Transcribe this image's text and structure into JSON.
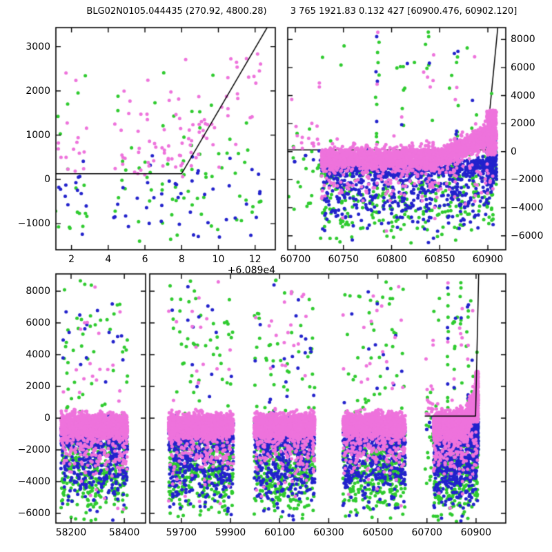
{
  "titles": {
    "left": "BLG02N0105.044435 (270.92, 4800.28)",
    "right": "3 765 1921.83 0.132 427 [60900.476, 60902.120]"
  },
  "colors": {
    "violet": "#EE73DC",
    "green": "#2FCB2F",
    "blue": "#2222CC",
    "line": "#000000",
    "frame": "#000000",
    "background": "#ffffff",
    "text": "#000000"
  },
  "chart_data": {
    "type": "scatter",
    "title": "BLG02N0105.044435 (270.92, 4800.28)    3 765 1921.83 0.132 427 [60900.476, 60902.120]",
    "xlabel": "",
    "ylabel": "",
    "grid": false,
    "legend": "none",
    "seed": 12,
    "marker_radius": 2.5,
    "series": [
      {
        "name": "violet-photometry",
        "color": "#EE73DC"
      },
      {
        "name": "green-photometry",
        "color": "#2FCB2F"
      },
      {
        "name": "blue-photometry",
        "color": "#2222CC"
      }
    ],
    "model_line": [
      [
        60691,
        130
      ],
      [
        60898.0,
        130
      ],
      [
        60911.5,
        9700
      ]
    ],
    "panels": [
      {
        "id": "top-left-zoom",
        "px": {
          "l": 81,
          "r": 399,
          "t": 40,
          "b": 362
        },
        "xlim": [
          60891.15,
          60903.1
        ],
        "ylim": [
          -1590,
          3430
        ],
        "xticks": {
          "values": [
            60892,
            60894,
            60896,
            60898,
            60900,
            60902
          ],
          "labels": [
            "2",
            "4",
            "6",
            "8",
            "10",
            "12"
          ]
        },
        "offset_text": "+6.089e4",
        "yticks": {
          "values": [
            -1000,
            0,
            1000,
            2000,
            3000
          ],
          "labels": [
            "−1000",
            "0",
            "1000",
            "2000",
            "3000"
          ],
          "labels_side": "left"
        },
        "dataset": "zoom",
        "model": true,
        "model_z": "over"
      },
      {
        "id": "top-right-zoom",
        "px": {
          "l": 417,
          "r": 733,
          "t": 40,
          "b": 362
        },
        "xlim": [
          60692.1,
          60918.6
        ],
        "ylim": [
          -7000,
          8850
        ],
        "xticks": {
          "values": [
            60700,
            60750,
            60800,
            60850,
            60900
          ],
          "labels": [
            "60700",
            "60750",
            "60800",
            "60850",
            "60900"
          ]
        },
        "yticks": {
          "values": [
            -6000,
            -4000,
            -2000,
            0,
            2000,
            4000,
            6000,
            8000
          ],
          "labels": [
            "−6000",
            "−4000",
            "−2000",
            "0",
            "2000",
            "4000",
            "6000",
            "8000"
          ],
          "labels_side": "right"
        },
        "dataset": "main",
        "model": true,
        "model_z": "under"
      },
      {
        "id": "bottom-left-segment",
        "px": {
          "l": 81,
          "r": 211,
          "t": 397,
          "b": 758
        },
        "xlim": [
          58143,
          58480
        ],
        "ylim": [
          -6610,
          9090
        ],
        "xticks": {
          "values": [
            58200,
            58400
          ],
          "labels": [
            "58200",
            "58400"
          ]
        },
        "yticks": {
          "values": [
            -6000,
            -4000,
            -2000,
            0,
            2000,
            4000,
            6000,
            8000
          ],
          "labels": [
            "−6000",
            "−4000",
            "−2000",
            "0",
            "2000",
            "4000",
            "6000",
            "8000"
          ],
          "labels_side": "left"
        },
        "dataset": "main",
        "model": true,
        "model_z": "over"
      },
      {
        "id": "bottom-right-segment",
        "px": {
          "l": 217,
          "r": 733,
          "t": 397,
          "b": 758
        },
        "xlim": [
          59571,
          61021
        ],
        "ylim": [
          -6610,
          9090
        ],
        "xticks": {
          "values": [
            59700,
            59900,
            60100,
            60300,
            60500,
            60700,
            60900
          ],
          "labels": [
            "59700",
            "59900",
            "60100",
            "60300",
            "60500",
            "60700",
            "60900"
          ]
        },
        "yticks": {
          "values": [
            -6000,
            -4000,
            -2000,
            0,
            2000,
            4000,
            6000,
            8000
          ],
          "labels": [],
          "labels_side": "none"
        },
        "dataset": "main",
        "model": true,
        "model_z": "over"
      }
    ],
    "clusters": [
      {
        "x": [
          58162,
          58412
        ],
        "violet": {
          "dense": {
            "n": 1500,
            "mean": -480,
            "sd": 360,
            "clip": [
              -1650,
              650
            ]
          },
          "mid": {
            "n": 150,
            "mean": -1800,
            "sd": 850,
            "clip": [
              -4600,
              -700
            ]
          },
          "out": {
            "n": 34,
            "range": [
              -6200,
              8600
            ]
          }
        },
        "blue": {
          "dense": {
            "n": 430,
            "mean": -1050,
            "sd": 430,
            "clip": [
              -2600,
              200
            ]
          },
          "tail": {
            "n": 260,
            "mean": -2900,
            "sd": 1150,
            "clip": [
              -6500,
              -1200
            ]
          },
          "out": {
            "n": 28,
            "range": [
              -6500,
              8500
            ]
          }
        },
        "green": {
          "dense": {
            "n": 80,
            "mean": -1250,
            "sd": 600,
            "clip": [
              -2400,
              -100
            ]
          },
          "tail": {
            "n": 300,
            "mean": -3300,
            "sd": 1400,
            "clip": [
              -6600,
              -1500
            ]
          },
          "out": {
            "n": 46,
            "range": [
              250,
              8700
            ]
          }
        }
      },
      {
        "x": [
          59648,
          59912
        ],
        "violet": {
          "dense": {
            "n": 1500,
            "mean": -480,
            "sd": 360,
            "clip": [
              -1650,
              650
            ]
          },
          "mid": {
            "n": 150,
            "mean": -1800,
            "sd": 850,
            "clip": [
              -4600,
              -700
            ]
          },
          "out": {
            "n": 34,
            "range": [
              -6200,
              8600
            ]
          }
        },
        "blue": {
          "dense": {
            "n": 430,
            "mean": -1050,
            "sd": 430,
            "clip": [
              -2600,
              200
            ]
          },
          "tail": {
            "n": 260,
            "mean": -2900,
            "sd": 1150,
            "clip": [
              -6500,
              -1200
            ]
          },
          "out": {
            "n": 28,
            "range": [
              -6500,
              8500
            ]
          }
        },
        "green": {
          "dense": {
            "n": 80,
            "mean": -1250,
            "sd": 600,
            "clip": [
              -2400,
              -100
            ]
          },
          "tail": {
            "n": 300,
            "mean": -3300,
            "sd": 1400,
            "clip": [
              -6600,
              -1500
            ]
          },
          "out": {
            "n": 46,
            "range": [
              250,
              8700
            ]
          }
        }
      },
      {
        "x": [
          59996,
          60243
        ],
        "violet": {
          "dense": {
            "n": 1500,
            "mean": -480,
            "sd": 360,
            "clip": [
              -1650,
              650
            ]
          },
          "mid": {
            "n": 150,
            "mean": -1800,
            "sd": 850,
            "clip": [
              -4600,
              -700
            ]
          },
          "out": {
            "n": 34,
            "range": [
              -6200,
              8600
            ]
          }
        },
        "blue": {
          "dense": {
            "n": 430,
            "mean": -1050,
            "sd": 430,
            "clip": [
              -2600,
              200
            ]
          },
          "tail": {
            "n": 260,
            "mean": -2900,
            "sd": 1150,
            "clip": [
              -6500,
              -1200
            ]
          },
          "out": {
            "n": 28,
            "range": [
              -6500,
              8500
            ]
          }
        },
        "green": {
          "dense": {
            "n": 80,
            "mean": -1250,
            "sd": 600,
            "clip": [
              -2400,
              -100
            ]
          },
          "tail": {
            "n": 300,
            "mean": -3300,
            "sd": 1400,
            "clip": [
              -6600,
              -1500
            ]
          },
          "out": {
            "n": 46,
            "range": [
              250,
              8700
            ]
          }
        }
      },
      {
        "x": [
          60358,
          60612
        ],
        "violet": {
          "dense": {
            "n": 1500,
            "mean": -480,
            "sd": 360,
            "clip": [
              -1650,
              650
            ]
          },
          "mid": {
            "n": 150,
            "mean": -1800,
            "sd": 850,
            "clip": [
              -4600,
              -700
            ]
          },
          "out": {
            "n": 34,
            "range": [
              -6200,
              8600
            ]
          }
        },
        "blue": {
          "dense": {
            "n": 430,
            "mean": -1050,
            "sd": 430,
            "clip": [
              -2600,
              200
            ]
          },
          "tail": {
            "n": 260,
            "mean": -2900,
            "sd": 1150,
            "clip": [
              -6500,
              -1200
            ]
          },
          "out": {
            "n": 28,
            "range": [
              -6500,
              8500
            ]
          }
        },
        "green": {
          "dense": {
            "n": 80,
            "mean": -1250,
            "sd": 600,
            "clip": [
              -2400,
              -100
            ]
          },
          "tail": {
            "n": 300,
            "mean": -3300,
            "sd": 1400,
            "clip": [
              -6600,
              -1500
            ]
          },
          "out": {
            "n": 46,
            "range": [
              250,
              8700
            ]
          }
        }
      },
      {
        "x": [
          60727,
          60906
        ],
        "spikes": [
          60785,
          60812,
          60838,
          60868
        ],
        "event_ramp": {
          "t0": 60840,
          "scale": 66,
          "pow": 1.5,
          "amp": 2600
        },
        "violet": {
          "dense": {
            "n": 2600,
            "mean": -480,
            "sd": 360,
            "clip": [
              -1650,
              650
            ]
          },
          "mid": {
            "n": 160,
            "mean": -1800,
            "sd": 850,
            "clip": [
              -4600,
              -700
            ]
          },
          "out": {
            "n": 30,
            "range": [
              -6200,
              8600
            ]
          }
        },
        "blue": {
          "dense": {
            "n": 700,
            "mean": -1050,
            "sd": 430,
            "clip": [
              -2600,
              200
            ]
          },
          "tail": {
            "n": 350,
            "mean": -2950,
            "sd": 1150,
            "clip": [
              -6500,
              -1200
            ]
          },
          "out": {
            "n": 26,
            "range": [
              -6500,
              8500
            ]
          }
        },
        "green": {
          "dense": {
            "n": 90,
            "mean": -1250,
            "sd": 600,
            "clip": [
              -2400,
              -100
            ]
          },
          "tail": {
            "n": 280,
            "mean": -3300,
            "sd": 1400,
            "clip": [
              -6600,
              -1500
            ]
          },
          "out": {
            "n": 40,
            "range": [
              250,
              8700
            ]
          }
        }
      },
      {
        "x": [
          60692,
          60727
        ],
        "violet": {
          "sparse": {
            "n": 14,
            "range": [
              -500,
              2200
            ]
          },
          "hi": {
            "n": 3,
            "range": [
              3300,
              5200
            ]
          }
        },
        "green": {
          "sparse": {
            "n": 20,
            "range": [
              -6300,
              2100
            ]
          }
        },
        "blue": {
          "sparse": {
            "n": 7,
            "range": [
              -900,
              300
            ]
          }
        }
      },
      {
        "x": [
          60899,
          60909
        ],
        "violet": {
          "col": {
            "n": 300,
            "range": [
              -250,
              2950
            ]
          }
        },
        "blue": {
          "col": {
            "n": 150,
            "mean": -800,
            "sd": 900,
            "clip": [
              -2800,
              1800
            ]
          }
        },
        "green": {
          "col": {
            "n": 50,
            "range": [
              -2600,
              1500
            ]
          }
        }
      }
    ],
    "topleft_nights": {
      "start": 60891.35,
      "end": 60902.55,
      "step": 0.38,
      "jitter": 0.09,
      "gap": [
        60892.75,
        60894.35
      ],
      "violet": {
        "n": [
          2,
          7
        ],
        "mean": 600,
        "sd": 430,
        "clip": [
          -1480,
          3350
        ],
        "out_p": 0.07,
        "out_range": [
          1600,
          2750
        ]
      },
      "green": {
        "n": [
          2,
          5
        ],
        "mean": -250,
        "sd": 900,
        "clip": [
          -1470,
          2480
        ],
        "out_p": 0.05,
        "out_range": [
          1400,
          2450
        ]
      },
      "blue": {
        "n": [
          1,
          4
        ],
        "mean": -420,
        "sd": 620,
        "clip": [
          -1430,
          980
        ]
      },
      "event": {
        "t0": 60898,
        "slope": [
          220,
          640
        ]
      }
    }
  }
}
